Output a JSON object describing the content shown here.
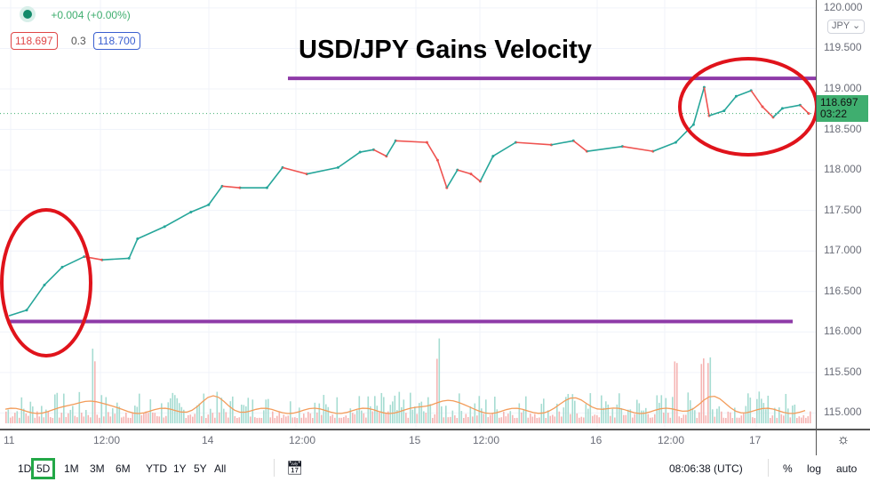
{
  "legend": {
    "change": "+0.004 (+0.00%)",
    "bid": "118.697",
    "spread": "0.3",
    "ask": "118.700"
  },
  "annotation_title": "USD/JPY Gains Velocity",
  "currency": "JPY",
  "last_price": "118.697",
  "countdown": "03:22",
  "colors": {
    "up": "#26a69a",
    "down": "#ef5350",
    "line": "#8e3aa8",
    "circle": "#e0131b",
    "last": "#3fae6f"
  },
  "range_buttons": [
    "1D",
    "5D",
    "1M",
    "3M",
    "6M",
    "YTD",
    "1Y",
    "5Y",
    "All"
  ],
  "selected_range": "5D",
  "clock": "08:06:38 (UTC)",
  "scale_opts": [
    "%",
    "log",
    "auto"
  ],
  "icons": {
    "settings": "gear-icon",
    "goto": "calendar-goto-icon"
  },
  "chart_data": {
    "type": "line",
    "ylim": [
      114.9,
      120.0
    ],
    "ytick_labels": [
      "120.000",
      "119.500",
      "119.000",
      "118.500",
      "118.000",
      "117.500",
      "117.000",
      "116.500",
      "116.000",
      "115.500",
      "115.000"
    ],
    "xtick_labels": [
      "11",
      "12:00",
      "14",
      "12:00",
      "15",
      "12:00",
      "16",
      "12:00",
      "17"
    ],
    "x_hours": [
      0,
      2.5,
      5,
      7.5,
      10.6,
      13.1,
      16.9,
      18.1,
      21.9,
      25.6,
      28.1,
      30,
      32.5,
      36.3,
      38.5,
      41.9,
      46.3,
      49.4,
      51.3,
      53.1,
      54.4,
      58.8,
      60.3,
      61.6,
      63.1,
      65,
      66.3,
      68.1,
      71.3,
      76.3,
      79.4,
      81.3,
      86.3,
      90.6,
      93.8,
      96.3,
      97.8,
      98.5,
      100.6,
      102.3,
      104.4,
      106,
      107.5,
      108.8,
      111.3,
      112.5
    ],
    "values": [
      116.2,
      116.27,
      116.58,
      116.8,
      116.93,
      116.89,
      116.91,
      117.15,
      117.3,
      117.48,
      117.57,
      117.8,
      117.78,
      117.78,
      118.03,
      117.95,
      118.03,
      118.22,
      118.25,
      118.17,
      118.36,
      118.34,
      118.12,
      117.78,
      118.0,
      117.95,
      117.86,
      118.17,
      118.34,
      118.31,
      118.36,
      118.23,
      118.29,
      118.23,
      118.34,
      118.56,
      119.02,
      118.67,
      118.73,
      118.91,
      118.98,
      118.78,
      118.65,
      118.76,
      118.8,
      118.697
    ],
    "hlines": [
      119.13,
      116.13
    ],
    "grid": true
  }
}
